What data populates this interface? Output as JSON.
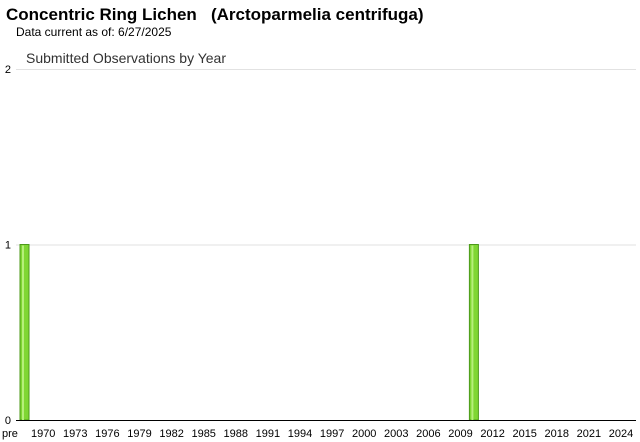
{
  "header": {
    "common_name": "Concentric Ring Lichen",
    "scientific_name": "(Arctoparmelia centrifuga)",
    "data_current": "Data current as of: 6/27/2025"
  },
  "colors": {
    "bar_fill": "#7fd633",
    "bar_stroke": "#4c9a1a",
    "grid": "#e2e2e2",
    "axis": "#000000"
  },
  "chart_data": {
    "type": "bar",
    "title": "Submitted Observations by Year",
    "xlabel": "",
    "ylabel": "",
    "ylim": [
      0,
      2
    ],
    "yticks": [
      "0",
      "1",
      "2"
    ],
    "grid": true,
    "xtick_labels": [
      "pre",
      "1970",
      "1973",
      "1976",
      "1979",
      "1982",
      "1985",
      "1988",
      "1991",
      "1994",
      "1997",
      "2000",
      "2003",
      "2006",
      "2009",
      "2012",
      "2015",
      "2018",
      "2021",
      "2024"
    ],
    "categories": [
      "pre",
      "1970",
      "1971",
      "1972",
      "1973",
      "1974",
      "1975",
      "1976",
      "1977",
      "1978",
      "1979",
      "1980",
      "1981",
      "1982",
      "1983",
      "1984",
      "1985",
      "1986",
      "1987",
      "1988",
      "1989",
      "1990",
      "1991",
      "1992",
      "1993",
      "1994",
      "1995",
      "1996",
      "1997",
      "1998",
      "1999",
      "2000",
      "2001",
      "2002",
      "2003",
      "2004",
      "2005",
      "2006",
      "2007",
      "2008",
      "2009",
      "2010",
      "2011",
      "2012",
      "2013",
      "2014",
      "2015",
      "2016",
      "2017",
      "2018",
      "2019",
      "2020",
      "2021",
      "2022",
      "2023",
      "2024",
      "2025"
    ],
    "values": [
      1,
      0,
      0,
      0,
      0,
      0,
      0,
      0,
      0,
      0,
      0,
      0,
      0,
      0,
      0,
      0,
      0,
      0,
      0,
      0,
      0,
      0,
      0,
      0,
      0,
      0,
      0,
      0,
      0,
      0,
      0,
      0,
      0,
      0,
      0,
      0,
      0,
      0,
      0,
      0,
      0,
      0,
      1,
      0,
      0,
      0,
      0,
      0,
      0,
      0,
      0,
      0,
      0,
      0,
      0,
      0,
      0
    ]
  }
}
